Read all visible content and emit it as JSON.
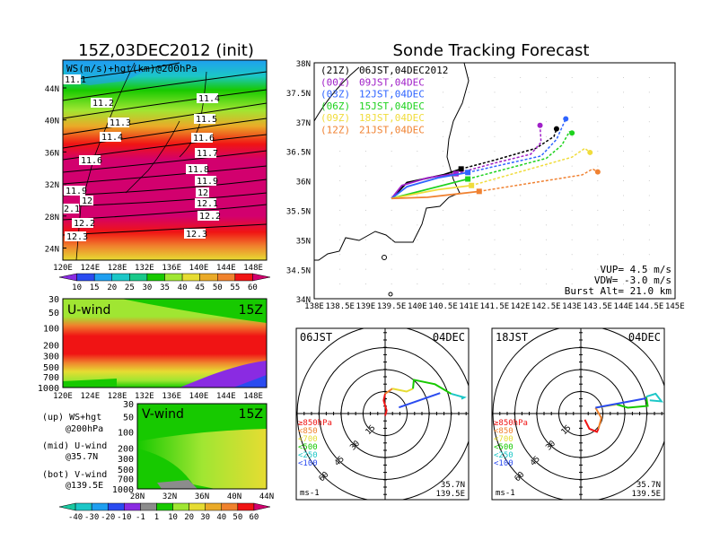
{
  "chart_data": [
    {
      "type": "heatmap",
      "title": "15Z,03DEC2012 (init)",
      "subtitle": "WS(m/s)+hgt(km)@200hPa",
      "xticks": [
        "120E",
        "124E",
        "128E",
        "132E",
        "136E",
        "140E",
        "144E",
        "148E"
      ],
      "yticks": [
        "44N",
        "40N",
        "36N",
        "32N",
        "28N",
        "24N"
      ],
      "xlim": [
        120,
        150
      ],
      "ylim": [
        22,
        47
      ],
      "colorbar": {
        "labels": [
          "10",
          "15",
          "20",
          "25",
          "30",
          "35",
          "40",
          "45",
          "50",
          "55",
          "60"
        ],
        "colors": [
          "#8a2be2",
          "#2a4bf0",
          "#1f9ff0",
          "#1cc7c7",
          "#19c98a",
          "#17c900",
          "#a0e632",
          "#e6dc32",
          "#eaaa28",
          "#f0822d",
          "#f01414",
          "#d2006e"
        ]
      },
      "contour_labels_left": [
        "11.1",
        "11.2",
        "11.3",
        "11.4",
        "11.6",
        "11.9",
        "12",
        "2.1",
        "12.2",
        "12.3"
      ],
      "contour_labels_right": [
        "11.4",
        "11.5",
        "11.6",
        "11.7",
        "11.8",
        "11.9",
        "12",
        "12.1",
        "12.2",
        "12.3"
      ]
    },
    {
      "type": "heatmap",
      "title": "U-wind",
      "time": "15Z",
      "xticks": [
        "120E",
        "124E",
        "128E",
        "132E",
        "136E",
        "140E",
        "144E",
        "148E"
      ],
      "yticks": [
        "30",
        "50",
        "100",
        "200",
        "300",
        "500",
        "700",
        "1000"
      ]
    },
    {
      "type": "heatmap",
      "title": "V-wind",
      "time": "15Z",
      "xticks": [
        "28N",
        "32N",
        "36N",
        "40N",
        "44N"
      ],
      "yticks": [
        "30",
        "50",
        "100",
        "200",
        "300",
        "500",
        "700",
        "1000"
      ],
      "colorbar": {
        "labels": [
          "-40",
          "-30",
          "-20",
          "-10",
          "-1",
          "1",
          "10",
          "20",
          "30",
          "40",
          "50",
          "60"
        ],
        "colors": [
          "#19c8a0",
          "#1cc7c7",
          "#1f9ff0",
          "#2a4bf0",
          "#8a2be2",
          "#8c8c8c",
          "#17c900",
          "#a0e632",
          "#e6dc32",
          "#eaaa28",
          "#f0822d",
          "#f01414",
          "#d2006e"
        ]
      }
    },
    {
      "type": "line",
      "title": "Sonde Tracking Forecast",
      "xlim": [
        138,
        145
      ],
      "ylim": [
        34,
        38
      ],
      "xticks": [
        "138E",
        "138.5E",
        "139E",
        "139.5E",
        "140E",
        "140.5E",
        "141E",
        "141.5E",
        "142E",
        "142.5E",
        "143E",
        "143.5E",
        "144E",
        "144.5E",
        "145E"
      ],
      "yticks": [
        "38N",
        "37.5N",
        "37N",
        "36.5N",
        "36N",
        "35.5N",
        "35N",
        "34.5N",
        "34N"
      ],
      "launch": [
        139.5,
        35.7
      ],
      "series": [
        {
          "utc": "(21Z)",
          "name": "06JST,04DEC2012",
          "color": "#000000",
          "burst": 3,
          "points": [
            [
              139.5,
              35.7
            ],
            [
              139.8,
              35.97
            ],
            [
              140.5,
              36.1
            ],
            [
              140.85,
              36.2
            ],
            [
              141.5,
              36.35
            ],
            [
              142.3,
              36.55
            ],
            [
              142.65,
              36.75
            ],
            [
              142.7,
              36.88
            ]
          ]
        },
        {
          "utc": "(00Z)",
          "name": "09JST,04DEC",
          "color": "#a020c8",
          "burst": 3,
          "points": [
            [
              139.5,
              35.7
            ],
            [
              139.7,
              35.92
            ],
            [
              140.2,
              36.05
            ],
            [
              140.75,
              36.12
            ],
            [
              141.5,
              36.3
            ],
            [
              142.2,
              36.45
            ],
            [
              142.4,
              36.65
            ],
            [
              142.38,
              36.94
            ]
          ]
        },
        {
          "utc": "(03Z)",
          "name": "12JST,04DEC",
          "color": "#2e64ff",
          "burst": 3,
          "points": [
            [
              139.5,
              35.7
            ],
            [
              139.8,
              35.9
            ],
            [
              140.4,
              36.05
            ],
            [
              140.98,
              36.14
            ],
            [
              142.4,
              36.42
            ],
            [
              142.7,
              36.7
            ],
            [
              142.88,
              37.05
            ]
          ]
        },
        {
          "utc": "(06Z)",
          "name": "15JST,04DEC",
          "color": "#1ed21e",
          "burst": 1,
          "points": [
            [
              139.5,
              35.7
            ],
            [
              140.98,
              36.03
            ],
            [
              142.5,
              36.38
            ],
            [
              142.8,
              36.6
            ],
            [
              142.95,
              36.83
            ],
            [
              143.0,
              36.81
            ]
          ]
        },
        {
          "utc": "(09Z)",
          "name": "18JST,04DEC",
          "color": "#f0dc3c",
          "burst": 2,
          "points": [
            [
              139.5,
              35.7
            ],
            [
              140.4,
              35.85
            ],
            [
              141.05,
              35.92
            ],
            [
              143.0,
              36.4
            ],
            [
              143.25,
              36.55
            ],
            [
              143.35,
              36.48
            ]
          ]
        },
        {
          "utc": "(12Z)",
          "name": "21JST,04DEC",
          "color": "#f08232",
          "burst": 2,
          "points": [
            [
              139.5,
              35.7
            ],
            [
              140.2,
              35.72
            ],
            [
              141.2,
              35.82
            ],
            [
              143.2,
              36.1
            ],
            [
              143.4,
              36.2
            ],
            [
              143.5,
              36.15
            ]
          ]
        }
      ],
      "annotations": [
        "VUP= 4.5 m/s",
        "VDW= -3.0 m/s",
        "Burst Alt= 21.0 km"
      ]
    },
    {
      "type": "line",
      "title": "06JST",
      "date": "04DEC",
      "ring_labels": [
        "15",
        "30",
        "45",
        "60"
      ],
      "unit": "ms-1",
      "lat": "35.7N",
      "lon": "139.5E",
      "layers": [
        {
          "label": "≥850hPa",
          "color": "#f01414",
          "uv": [
            [
              0,
              -1.5
            ],
            [
              1,
              2
            ],
            [
              -1,
              9
            ],
            [
              0,
              13.5
            ]
          ]
        },
        {
          "label": "<850",
          "color": "#f0822d",
          "uv": [
            [
              0,
              13.5
            ],
            [
              5,
              17
            ]
          ]
        },
        {
          "label": "<700",
          "color": "#e6dc32",
          "uv": [
            [
              5,
              17
            ],
            [
              14.6,
              15
            ],
            [
              19,
              17
            ]
          ]
        },
        {
          "label": "<500",
          "color": "#17c900",
          "uv": [
            [
              19,
              17
            ],
            [
              19.6,
              23
            ],
            [
              34,
              20
            ],
            [
              45,
              13.5
            ]
          ]
        },
        {
          "label": "<250",
          "color": "#1cc7c7",
          "uv": [
            [
              45,
              13.5
            ],
            [
              54,
              11
            ],
            [
              52,
              10
            ]
          ]
        },
        {
          "label": "<100",
          "color": "#2a4bf0",
          "uv": [
            [
              37.5,
              14
            ],
            [
              9.4,
              4.2
            ]
          ]
        }
      ]
    },
    {
      "type": "line",
      "title": "18JST",
      "date": "04DEC",
      "ring_labels": [
        "15",
        "30",
        "45",
        "60"
      ],
      "unit": "ms-1",
      "lat": "35.7N",
      "lon": "139.5E",
      "layers": [
        {
          "label": "≥850hPa",
          "color": "#f01414",
          "uv": [
            [
              2.7,
              -4.2
            ],
            [
              5.8,
              -10.4
            ],
            [
              11,
              -12.5
            ],
            [
              12,
              -10.4
            ]
          ]
        },
        {
          "label": "<850",
          "color": "#f0822d",
          "uv": [
            [
              12,
              -10.4
            ],
            [
              14,
              -3
            ],
            [
              10,
              4
            ]
          ]
        },
        {
          "label": "<700",
          "color": "#e6dc32",
          "uv": [
            [
              10,
              4
            ],
            [
              24.6,
              6.2
            ]
          ]
        },
        {
          "label": "<500",
          "color": "#17c900",
          "uv": [
            [
              24.6,
              6.2
            ],
            [
              32,
              4
            ],
            [
              45.6,
              5.2
            ],
            [
              44.6,
              11.5
            ]
          ]
        },
        {
          "label": "<250",
          "color": "#1cc7c7",
          "uv": [
            [
              44.6,
              11.5
            ],
            [
              51,
              13.5
            ],
            [
              55,
              8.3
            ],
            [
              47,
              9
            ]
          ]
        },
        {
          "label": "<100",
          "color": "#2a4bf0",
          "uv": [
            [
              44.6,
              10.4
            ],
            [
              10,
              4
            ]
          ]
        }
      ]
    }
  ],
  "notes": [
    "(up) WS+hgt",
    "@200hPa",
    "(mid) U-wind",
    "@35.7N",
    "(bot) V-wind",
    "@139.5E"
  ]
}
